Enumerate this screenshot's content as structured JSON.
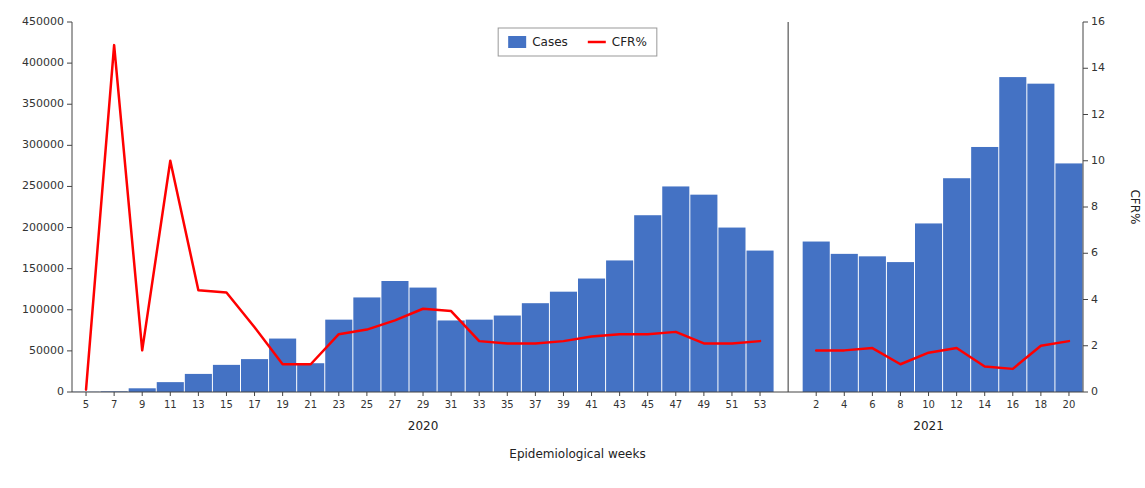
{
  "chart_data": {
    "type": "bar",
    "xlabel": "Epidemiological weeks",
    "y2label": "CFR%",
    "categories": [
      "5",
      "7",
      "9",
      "11",
      "13",
      "15",
      "17",
      "19",
      "21",
      "23",
      "25",
      "27",
      "29",
      "31",
      "33",
      "35",
      "37",
      "39",
      "41",
      "43",
      "45",
      "47",
      "49",
      "51",
      "53",
      null,
      "2",
      "4",
      "6",
      "8",
      "10",
      "12",
      "14",
      "16",
      "18",
      "20"
    ],
    "series": [
      {
        "name": "Cases",
        "type": "bar",
        "color": "#4472C4",
        "values": [
          300,
          800,
          4500,
          12000,
          22000,
          33000,
          40000,
          65000,
          35000,
          88000,
          115000,
          135000,
          127000,
          87000,
          88000,
          93000,
          108000,
          122000,
          138000,
          160000,
          215000,
          250000,
          240000,
          200000,
          172000,
          null,
          183000,
          168000,
          165000,
          158000,
          205000,
          260000,
          298000,
          383000,
          375000,
          278000
        ]
      },
      {
        "name": "CFR%",
        "type": "line",
        "axis": "y2",
        "color": "#FF0000",
        "values": [
          0.1,
          15.0,
          1.8,
          10.0,
          4.4,
          4.3,
          2.8,
          1.2,
          1.2,
          2.5,
          2.7,
          3.1,
          3.6,
          3.5,
          2.2,
          2.1,
          2.1,
          2.2,
          2.4,
          2.5,
          2.5,
          2.6,
          2.1,
          2.1,
          2.2,
          null,
          1.8,
          1.8,
          1.9,
          1.2,
          1.7,
          1.9,
          1.1,
          1.0,
          2.0,
          2.2
        ]
      }
    ],
    "ylim": [
      0,
      450000
    ],
    "yticks": [
      0,
      50000,
      100000,
      150000,
      200000,
      250000,
      300000,
      350000,
      400000,
      450000
    ],
    "y2lim": [
      0,
      16
    ],
    "y2ticks": [
      0,
      2,
      4,
      6,
      8,
      10,
      12,
      14,
      16
    ],
    "annotations": [
      {
        "text": "2020",
        "at": 12
      },
      {
        "text": "2021",
        "at": 30
      }
    ],
    "legend": "upper center",
    "grid": false
  }
}
